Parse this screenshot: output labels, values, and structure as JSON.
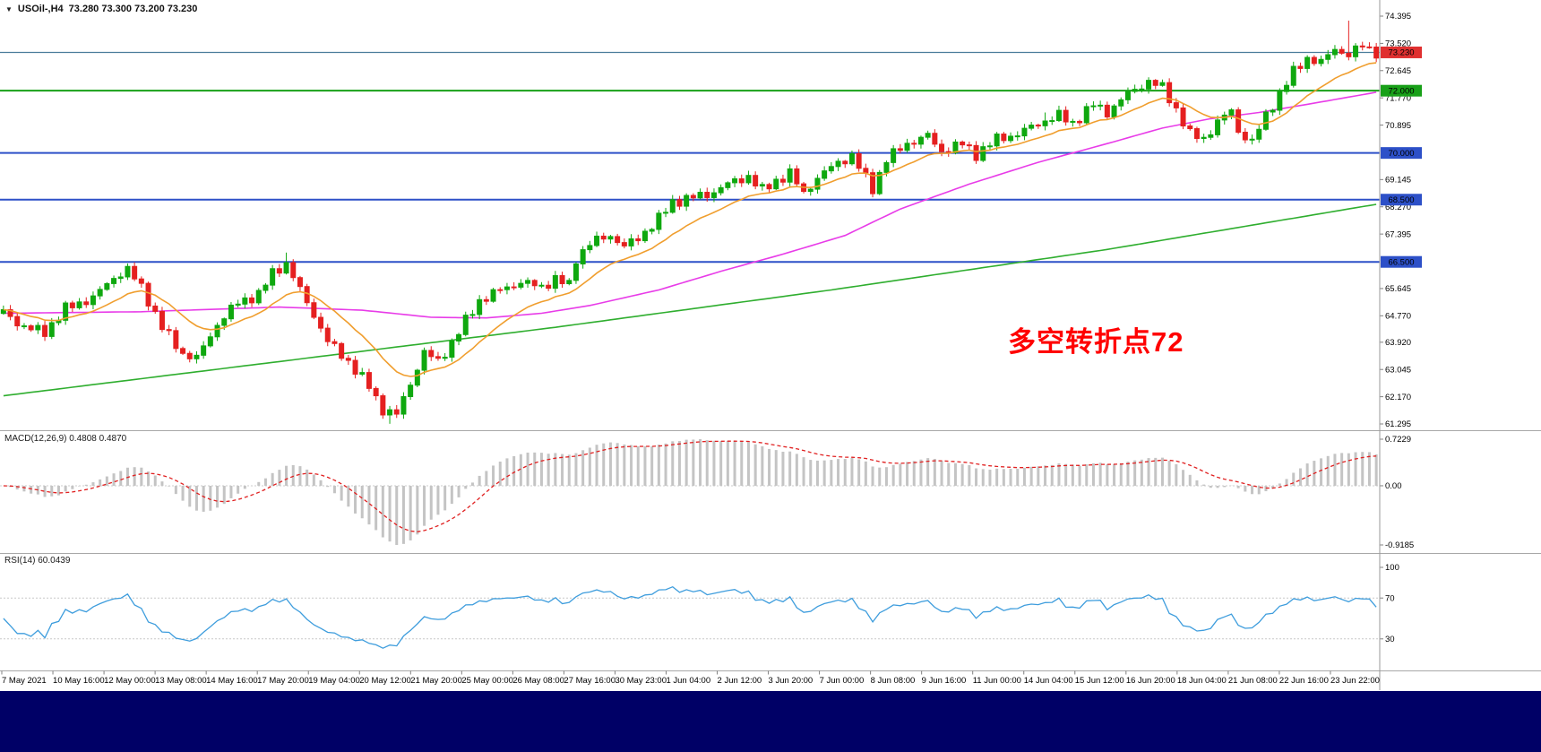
{
  "header": {
    "dropdown_icon": "▼",
    "symbol": "USOil-,H4",
    "ohlc": "73.280 73.300 73.200 73.230"
  },
  "annotation": {
    "text": "多空转折点72",
    "color": "#ff0000"
  },
  "bottom_bar": {
    "color": "#000066"
  },
  "chart_data": {
    "type": "candlestick",
    "title": "USOil-,H4",
    "open": "73.280",
    "high": "73.300",
    "low": "73.200",
    "close": "73.230",
    "price_axis_labels": [
      "74.395",
      "73.520",
      "72.645",
      "71.770",
      "70.895",
      "69.145",
      "68.270",
      "67.395",
      "65.645",
      "64.770",
      "63.920",
      "63.045",
      "62.170",
      "61.295"
    ],
    "price_axis_range": {
      "max": 74.395,
      "min": 61.295
    },
    "hlines": [
      {
        "price": 73.23,
        "label": "73.230",
        "line_color": "#4a7d9b",
        "badge_color": "#e03030"
      },
      {
        "price": 72.0,
        "label": "72.000",
        "line_color": "#18a018",
        "badge_color": "#18a018"
      },
      {
        "price": 70.0,
        "label": "70.000",
        "line_color": "#2d50c8",
        "badge_color": "#2d50c8"
      },
      {
        "price": 68.5,
        "label": "68.500",
        "line_color": "#2d50c8",
        "badge_color": "#2d50c8"
      },
      {
        "price": 66.5,
        "label": "66.500",
        "line_color": "#2d50c8",
        "badge_color": "#2d50c8"
      }
    ],
    "x_axis_labels": [
      "7 May 2021",
      "10 May 16:00",
      "12 May 00:00",
      "13 May 08:00",
      "14 May 16:00",
      "17 May 20:00",
      "19 May 04:00",
      "20 May 12:00",
      "21 May 20:00",
      "25 May 00:00",
      "26 May 08:00",
      "27 May 16:00",
      "30 May 23:00",
      "1 Jun 04:00",
      "2 Jun 12:00",
      "3 Jun 20:00",
      "7 Jun 00:00",
      "8 Jun 08:00",
      "9 Jun 16:00",
      "11 Jun 00:00",
      "14 Jun 04:00",
      "15 Jun 12:00",
      "16 Jun 20:00",
      "18 Jun 04:00",
      "21 Jun 08:00",
      "22 Jun 16:00",
      "23 Jun 22:00"
    ],
    "bars": 200,
    "wiggle": 0.12,
    "price_path_anchors": [
      [
        0,
        64.9
      ],
      [
        3,
        64.4
      ],
      [
        6,
        64.25
      ],
      [
        9,
        65.0
      ],
      [
        13,
        65.35
      ],
      [
        16,
        66.0
      ],
      [
        18,
        66.25
      ],
      [
        20,
        65.7
      ],
      [
        23,
        64.4
      ],
      [
        26,
        63.55
      ],
      [
        28,
        63.4
      ],
      [
        31,
        64.5
      ],
      [
        34,
        65.2
      ],
      [
        37,
        65.45
      ],
      [
        39,
        66.15
      ],
      [
        41,
        66.45
      ],
      [
        43,
        65.6
      ],
      [
        45,
        64.8
      ],
      [
        47,
        63.95
      ],
      [
        50,
        63.3
      ],
      [
        53,
        62.5
      ],
      [
        55,
        61.75
      ],
      [
        57,
        61.6
      ],
      [
        59,
        62.6
      ],
      [
        61,
        63.6
      ],
      [
        63,
        63.3
      ],
      [
        65,
        63.9
      ],
      [
        67,
        64.6
      ],
      [
        69,
        65.25
      ],
      [
        72,
        65.6
      ],
      [
        75,
        65.85
      ],
      [
        78,
        65.7
      ],
      [
        80,
        65.95
      ],
      [
        82,
        65.75
      ],
      [
        83,
        66.6
      ],
      [
        85,
        67.1
      ],
      [
        88,
        67.35
      ],
      [
        90,
        67.0
      ],
      [
        92,
        67.25
      ],
      [
        95,
        67.9
      ],
      [
        97,
        68.4
      ],
      [
        99,
        68.55
      ],
      [
        102,
        68.65
      ],
      [
        105,
        69.0
      ],
      [
        108,
        69.25
      ],
      [
        110,
        68.8
      ],
      [
        112,
        69.1
      ],
      [
        114,
        69.35
      ],
      [
        116,
        68.7
      ],
      [
        118,
        69.2
      ],
      [
        121,
        69.7
      ],
      [
        123,
        69.9
      ],
      [
        126,
        68.85
      ],
      [
        128,
        69.8
      ],
      [
        131,
        70.3
      ],
      [
        134,
        70.55
      ],
      [
        136,
        70.05
      ],
      [
        139,
        70.3
      ],
      [
        141,
        69.95
      ],
      [
        144,
        70.45
      ],
      [
        147,
        70.6
      ],
      [
        150,
        70.95
      ],
      [
        153,
        71.2
      ],
      [
        155,
        70.95
      ],
      [
        158,
        71.55
      ],
      [
        160,
        71.3
      ],
      [
        163,
        71.9
      ],
      [
        166,
        72.3
      ],
      [
        168,
        72.1
      ],
      [
        170,
        71.4
      ],
      [
        172,
        70.6
      ],
      [
        174,
        70.45
      ],
      [
        176,
        71.0
      ],
      [
        178,
        71.35
      ],
      [
        179,
        70.7
      ],
      [
        181,
        70.35
      ],
      [
        183,
        71.2
      ],
      [
        185,
        71.9
      ],
      [
        187,
        72.6
      ],
      [
        189,
        73.05
      ],
      [
        191,
        72.9
      ],
      [
        193,
        73.35
      ],
      [
        195,
        73.15
      ],
      [
        197,
        73.45
      ],
      [
        199,
        73.23
      ]
    ],
    "wick_overrides": [
      {
        "i": 18,
        "high": 66.45
      },
      {
        "i": 41,
        "high": 66.8
      },
      {
        "i": 56,
        "low": 61.3
      },
      {
        "i": 151,
        "high": 71.3
      },
      {
        "i": 195,
        "high": 74.25
      }
    ],
    "candle_colors": {
      "up": "#0fa80f",
      "down": "#e52020"
    },
    "moving_averages": {
      "fast": {
        "color": "#f09e2e",
        "period": 14
      },
      "mid": {
        "color": "#e83ce8",
        "anchors": [
          [
            0,
            64.85
          ],
          [
            20,
            64.9
          ],
          [
            40,
            65.05
          ],
          [
            52,
            64.95
          ],
          [
            62,
            64.72
          ],
          [
            70,
            64.7
          ],
          [
            78,
            64.85
          ],
          [
            85,
            65.1
          ],
          [
            95,
            65.6
          ],
          [
            104,
            66.2
          ],
          [
            113,
            66.75
          ],
          [
            122,
            67.35
          ],
          [
            130,
            68.2
          ],
          [
            140,
            69.0
          ],
          [
            150,
            69.7
          ],
          [
            160,
            70.3
          ],
          [
            168,
            70.8
          ],
          [
            175,
            71.1
          ],
          [
            182,
            71.3
          ],
          [
            190,
            71.6
          ],
          [
            199,
            71.95
          ]
        ]
      },
      "slow": {
        "color": "#2fae2f",
        "anchors": [
          [
            0,
            62.2
          ],
          [
            40,
            63.3
          ],
          [
            80,
            64.4
          ],
          [
            120,
            65.6
          ],
          [
            160,
            66.9
          ],
          [
            199,
            68.35
          ]
        ]
      }
    },
    "macd": {
      "label": "MACD(12,26,9) 0.4808 0.4870",
      "fast": 12,
      "slow": 26,
      "signal_period": 9,
      "axis_max": 0.7229,
      "axis_min": -0.9185,
      "axis_labels": [
        "0.7229",
        "0.00",
        "-0.9185"
      ],
      "hist_color": "#c4c4c4",
      "signal_color": "#e02020"
    },
    "rsi": {
      "label": "RSI(14) 60.0439",
      "period": 14,
      "axis_labels": [
        "100",
        "70",
        "30"
      ],
      "levels": [
        70,
        30
      ],
      "line_color": "#3e9ddd",
      "level_color": "#c8c8c8"
    }
  }
}
